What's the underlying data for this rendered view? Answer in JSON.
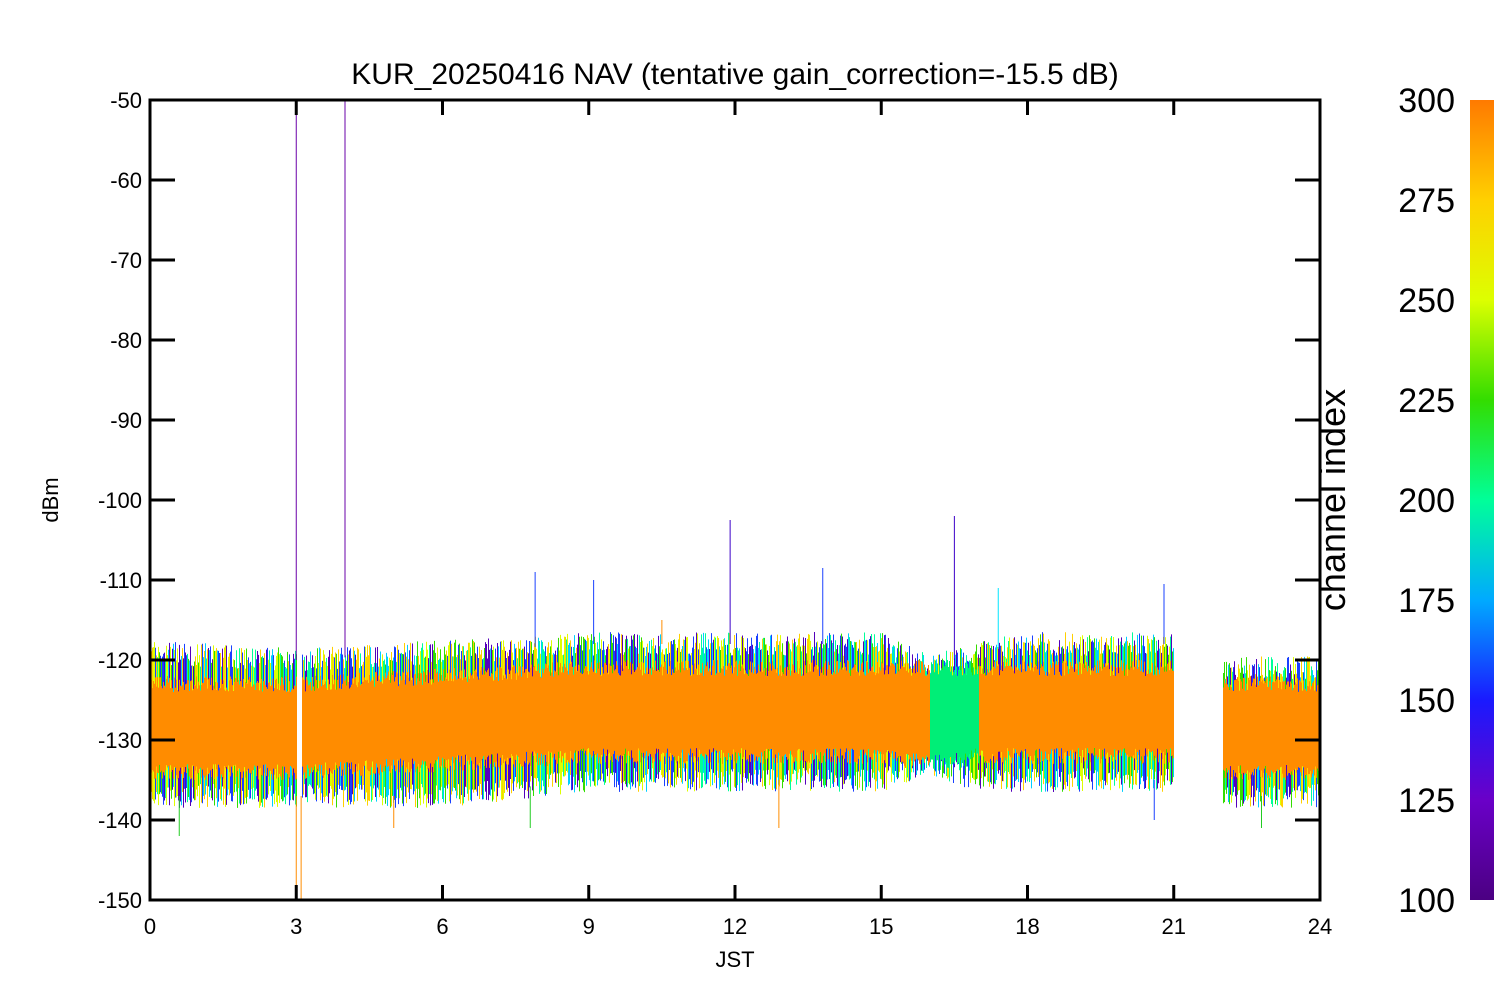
{
  "chart_data": {
    "type": "line",
    "title": "KUR_20250416 NAV (tentative gain_correction=-15.5 dB)",
    "xlabel": "JST",
    "ylabel": "dBm",
    "xlim": [
      0,
      24
    ],
    "ylim": [
      -150,
      -50
    ],
    "xticks": [
      "0",
      "3",
      "6",
      "9",
      "12",
      "15",
      "18",
      "21",
      "24"
    ],
    "yticks": [
      "-50",
      "-60",
      "-70",
      "-80",
      "-90",
      "-100",
      "-110",
      "-120",
      "-130",
      "-140",
      "-150"
    ],
    "colorbar": {
      "label": "channel index",
      "range": [
        100,
        300
      ],
      "ticks": [
        "300",
        "275",
        "250",
        "225",
        "200",
        "175",
        "150",
        "125",
        "100"
      ],
      "colormap": "rainbow"
    },
    "grid": false,
    "dominant_color": "#ff8c00",
    "segment_color": "#00ee77",
    "data_gaps_jst": [
      [
        3.0,
        3.1
      ],
      [
        21.0,
        22.0
      ]
    ],
    "band": {
      "x": [
        0,
        3,
        6,
        9,
        10.5,
        12,
        15,
        16,
        17,
        18,
        21,
        22,
        24
      ],
      "upper": [
        -119,
        -120,
        -119,
        -118,
        -118,
        -118,
        -118,
        -121,
        -119,
        -118,
        -118,
        -121,
        -121
      ],
      "lower": [
        -137,
        -137,
        -137,
        -135,
        -135,
        -135,
        -135,
        -133,
        -135,
        -135,
        -135,
        -137,
        -137
      ],
      "core_upper": [
        -123,
        -123,
        -122,
        -121,
        -121,
        -121,
        -121,
        -121,
        -121,
        -121,
        -121,
        -123,
        -123
      ],
      "core_lower": [
        -134,
        -134,
        -133,
        -132,
        -132,
        -132,
        -132,
        -133,
        -132,
        -132,
        -132,
        -134,
        -134
      ]
    },
    "series": [
      {
        "values_upper": [
          {
            "x": 3.0,
            "y": -50,
            "color": "#6a00a8"
          },
          {
            "x": 4.0,
            "y": -50,
            "color": "#6a00a8"
          },
          {
            "x": 7.9,
            "y": -109,
            "color": "#1a40ff"
          },
          {
            "x": 9.1,
            "y": -110,
            "color": "#1a40ff"
          },
          {
            "x": 11.9,
            "y": -102.5,
            "color": "#3b00c8"
          },
          {
            "x": 13.8,
            "y": -108.5,
            "color": "#1a40ff"
          },
          {
            "x": 16.5,
            "y": -102,
            "color": "#3b00c8"
          },
          {
            "x": 17.4,
            "y": -111,
            "color": "#00e5ff"
          },
          {
            "x": 20.8,
            "y": -110.5,
            "color": "#1a40ff"
          },
          {
            "x": 10.5,
            "y": -115,
            "color": "#ff8c00"
          }
        ],
        "values_lower": [
          {
            "x": 3.0,
            "y": -150,
            "color": "#ff8c00"
          },
          {
            "x": 3.1,
            "y": -150,
            "color": "#ff8c00"
          },
          {
            "x": 0.6,
            "y": -142,
            "color": "#22cc22"
          },
          {
            "x": 5.0,
            "y": -141,
            "color": "#ff8c00"
          },
          {
            "x": 7.8,
            "y": -141,
            "color": "#22cc22"
          },
          {
            "x": 12.9,
            "y": -141,
            "color": "#ff8c00"
          },
          {
            "x": 20.6,
            "y": -140,
            "color": "#1a40ff"
          },
          {
            "x": 22.8,
            "y": -141,
            "color": "#22cc22"
          }
        ]
      }
    ]
  }
}
